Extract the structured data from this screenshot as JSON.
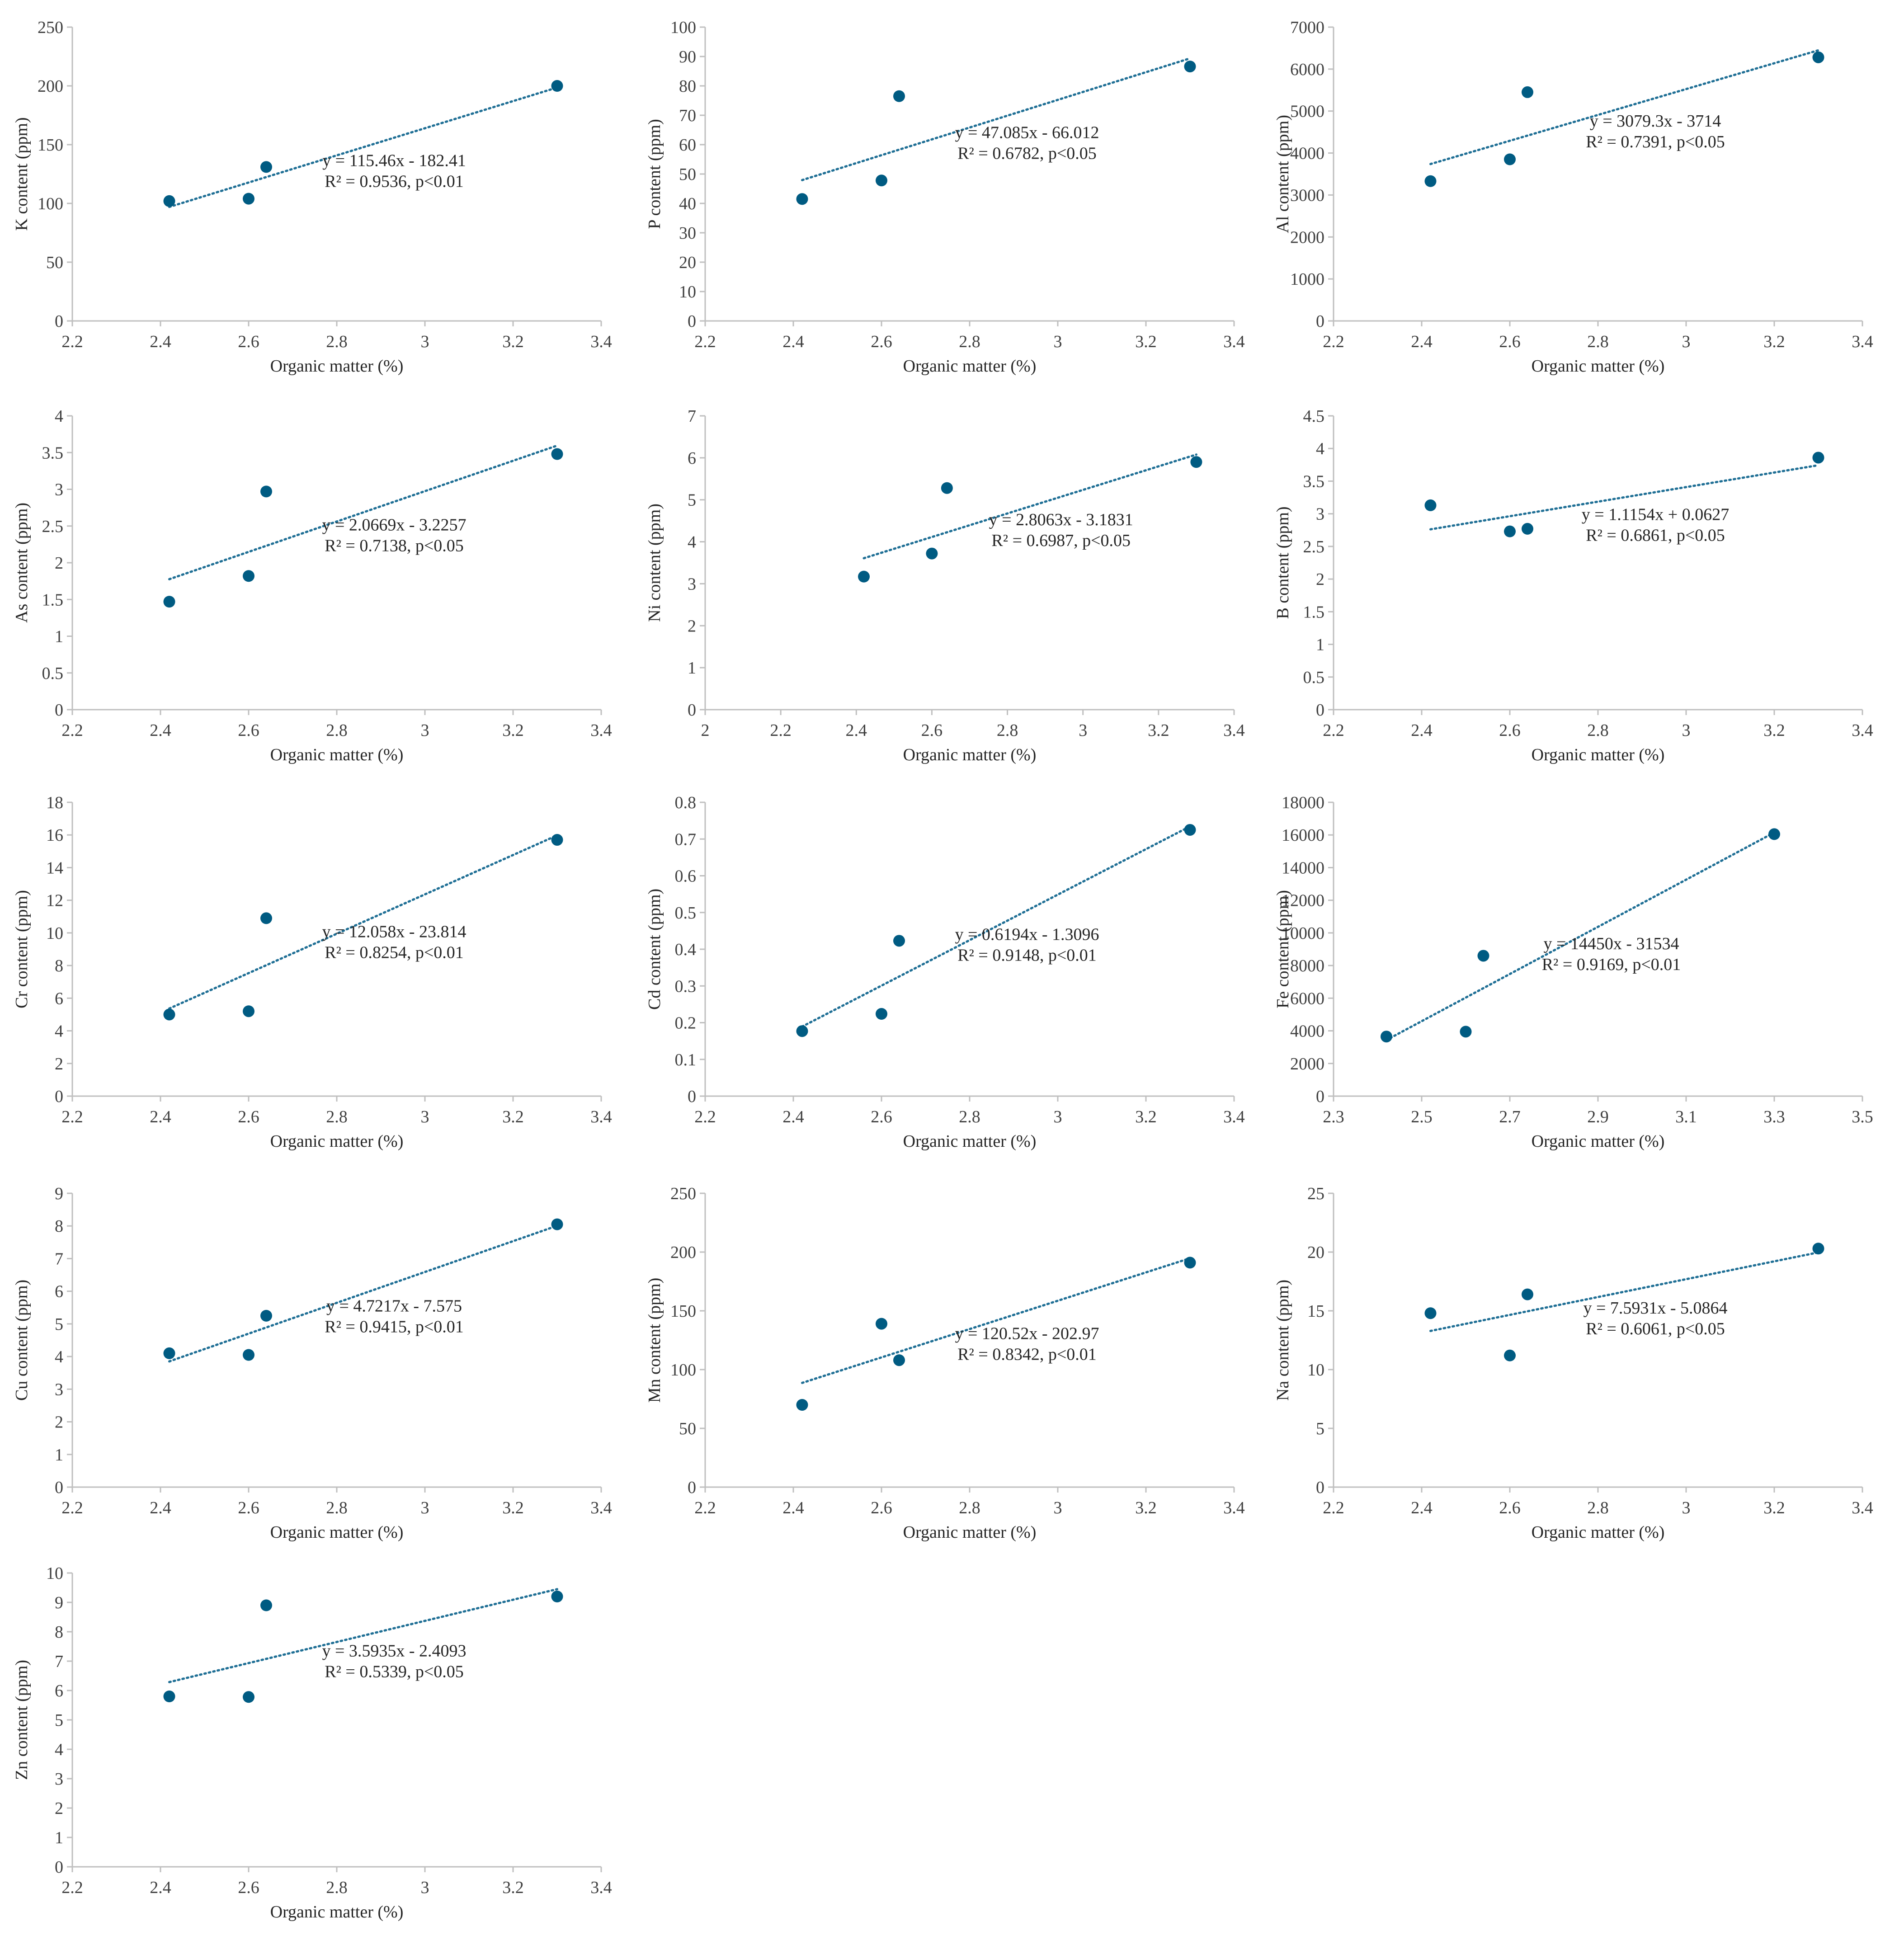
{
  "figure": {
    "x_axis_title": "Organic matter (%)",
    "point_color": "#005b82",
    "trend_color": "#1f6f95"
  },
  "chart_data": [
    {
      "type": "scatter",
      "id": "k",
      "ylabel": "K content (ppm)",
      "xlabel": "Organic matter (%)",
      "xlim": [
        2.2,
        3.4
      ],
      "xstep": 0.2,
      "ylim": [
        0,
        250
      ],
      "ystep": 50,
      "x_ticks": [
        "2.2",
        "2.4",
        "2.6",
        "2.8",
        "3",
        "3.2",
        "3.4"
      ],
      "y_ticks": [
        "0",
        "50",
        "100",
        "150",
        "200",
        "250"
      ],
      "points": [
        [
          2.42,
          102
        ],
        [
          2.6,
          104
        ],
        [
          2.64,
          131
        ],
        [
          3.3,
          200
        ]
      ],
      "trendline": {
        "slope": 115.46,
        "intercept": -182.41,
        "x_range": [
          2.42,
          3.3
        ]
      },
      "equation": "y = 115.46x - 182.41",
      "r2": "R² = 0.9536, p<0.01",
      "legend": "none"
    },
    {
      "type": "scatter",
      "id": "p",
      "ylabel": "P content (ppm)",
      "xlabel": "Organic matter (%)",
      "xlim": [
        2.2,
        3.4
      ],
      "xstep": 0.2,
      "ylim": [
        0,
        100
      ],
      "ystep": 10,
      "x_ticks": [
        "2.2",
        "2.4",
        "2.6",
        "2.8",
        "3",
        "3.2",
        "3.4"
      ],
      "y_ticks": [
        "0",
        "10",
        "20",
        "30",
        "40",
        "50",
        "60",
        "70",
        "80",
        "90",
        "100"
      ],
      "points": [
        [
          2.42,
          41.5
        ],
        [
          2.6,
          47.8
        ],
        [
          2.64,
          76.5
        ],
        [
          3.3,
          86.6
        ]
      ],
      "trendline": {
        "slope": 47.085,
        "intercept": -66.012,
        "x_range": [
          2.42,
          3.3
        ]
      },
      "equation": "y = 47.085x - 66.012",
      "r2": "R² = 0.6782, p<0.05",
      "legend": "none"
    },
    {
      "type": "scatter",
      "id": "al",
      "ylabel": "Al content (ppm)",
      "xlabel": "Organic matter (%)",
      "xlim": [
        2.2,
        3.4
      ],
      "xstep": 0.2,
      "ylim": [
        0,
        7000
      ],
      "ystep": 1000,
      "x_ticks": [
        "2.2",
        "2.4",
        "2.6",
        "2.8",
        "3",
        "3.2",
        "3.4"
      ],
      "y_ticks": [
        "0",
        "1000",
        "2000",
        "3000",
        "4000",
        "5000",
        "6000",
        "7000"
      ],
      "points": [
        [
          2.42,
          3330
        ],
        [
          2.6,
          3850
        ],
        [
          2.64,
          5450
        ],
        [
          3.3,
          6280
        ]
      ],
      "trendline": {
        "slope": 3079.3,
        "intercept": -3714,
        "x_range": [
          2.42,
          3.3
        ]
      },
      "equation": "y = 3079.3x - 3714",
      "r2": "R² = 0.7391, p<0.05",
      "legend": "none"
    },
    {
      "type": "scatter",
      "id": "as",
      "ylabel": "As content (ppm)",
      "xlabel": "Organic matter (%)",
      "xlim": [
        2.2,
        3.4
      ],
      "xstep": 0.2,
      "ylim": [
        0,
        4
      ],
      "ystep": 0.5,
      "x_ticks": [
        "2.2",
        "2.4",
        "2.6",
        "2.8",
        "3",
        "3.2",
        "3.4"
      ],
      "y_ticks": [
        "0",
        "0.5",
        "1",
        "1.5",
        "2",
        "2.5",
        "3",
        "3.5",
        "4"
      ],
      "points": [
        [
          2.42,
          1.47
        ],
        [
          2.6,
          1.82
        ],
        [
          2.64,
          2.97
        ],
        [
          3.3,
          3.48
        ]
      ],
      "trendline": {
        "slope": 2.0669,
        "intercept": -3.2257,
        "x_range": [
          2.42,
          3.3
        ]
      },
      "equation": "y = 2.0669x - 3.2257",
      "r2": "R² = 0.7138, p<0.05",
      "legend": "none"
    },
    {
      "type": "scatter",
      "id": "ni",
      "ylabel": "Ni content (ppm)",
      "xlabel": "Organic matter (%)",
      "xlim": [
        2.0,
        3.4
      ],
      "xstep": 0.2,
      "ylim": [
        0,
        7
      ],
      "ystep": 1,
      "x_ticks": [
        "2",
        "2.2",
        "2.4",
        "2.6",
        "2.8",
        "3",
        "3.2",
        "3.4"
      ],
      "y_ticks": [
        "0",
        "1",
        "2",
        "3",
        "4",
        "5",
        "6",
        "7"
      ],
      "points": [
        [
          2.42,
          3.17
        ],
        [
          2.6,
          3.72
        ],
        [
          2.64,
          5.28
        ],
        [
          3.3,
          5.9
        ]
      ],
      "trendline": {
        "slope": 2.8063,
        "intercept": -3.1831,
        "x_range": [
          2.42,
          3.3
        ]
      },
      "equation": "y = 2.8063x - 3.1831",
      "r2": "R² = 0.6987, p<0.05",
      "legend": "none"
    },
    {
      "type": "scatter",
      "id": "b",
      "ylabel": "B content (ppm)",
      "xlabel": "Organic matter (%)",
      "xlim": [
        2.2,
        3.4
      ],
      "xstep": 0.2,
      "ylim": [
        0,
        4.5
      ],
      "ystep": 0.5,
      "x_ticks": [
        "2.2",
        "2.4",
        "2.6",
        "2.8",
        "3",
        "3.2",
        "3.4"
      ],
      "y_ticks": [
        "0",
        "0.5",
        "1",
        "1.5",
        "2",
        "2.5",
        "3",
        "3.5",
        "4",
        "4.5"
      ],
      "points": [
        [
          2.42,
          3.13
        ],
        [
          2.6,
          2.73
        ],
        [
          2.64,
          2.77
        ],
        [
          3.3,
          3.86
        ]
      ],
      "trendline": {
        "slope": 1.1154,
        "intercept": 0.0627,
        "x_range": [
          2.42,
          3.3
        ]
      },
      "equation": "y = 1.1154x + 0.0627",
      "r2": "R² = 0.6861, p<0.05",
      "legend": "none"
    },
    {
      "type": "scatter",
      "id": "cr",
      "ylabel": "Cr content (ppm)",
      "xlabel": "Organic matter (%)",
      "xlim": [
        2.2,
        3.4
      ],
      "xstep": 0.2,
      "ylim": [
        0,
        18
      ],
      "ystep": 2,
      "x_ticks": [
        "2.2",
        "2.4",
        "2.6",
        "2.8",
        "3",
        "3.2",
        "3.4"
      ],
      "y_ticks": [
        "0",
        "2",
        "4",
        "6",
        "8",
        "10",
        "12",
        "14",
        "16",
        "18"
      ],
      "points": [
        [
          2.42,
          5.0
        ],
        [
          2.6,
          5.2
        ],
        [
          2.64,
          10.9
        ],
        [
          3.3,
          15.7
        ]
      ],
      "trendline": {
        "slope": 12.058,
        "intercept": -23.814,
        "x_range": [
          2.42,
          3.3
        ]
      },
      "equation": "y = 12.058x - 23.814",
      "r2": "R² = 0.8254, p<0.01",
      "legend": "none"
    },
    {
      "type": "scatter",
      "id": "cd",
      "ylabel": "Cd content (ppm)",
      "xlabel": "Organic matter (%)",
      "xlim": [
        2.2,
        3.4
      ],
      "xstep": 0.2,
      "ylim": [
        0,
        0.8
      ],
      "ystep": 0.1,
      "x_ticks": [
        "2.2",
        "2.4",
        "2.6",
        "2.8",
        "3",
        "3.2",
        "3.4"
      ],
      "y_ticks": [
        "0",
        "0.1",
        "0.2",
        "0.3",
        "0.4",
        "0.5",
        "0.6",
        "0.7",
        "0.8"
      ],
      "points": [
        [
          2.42,
          0.177
        ],
        [
          2.6,
          0.224
        ],
        [
          2.64,
          0.423
        ],
        [
          3.3,
          0.725
        ]
      ],
      "trendline": {
        "slope": 0.6194,
        "intercept": -1.3096,
        "x_range": [
          2.42,
          3.3
        ]
      },
      "equation": "y = 0.6194x - 1.3096",
      "r2": "R² = 0.9148, p<0.01",
      "legend": "none"
    },
    {
      "type": "scatter",
      "id": "fe",
      "ylabel": "Fe content (ppm)",
      "xlabel": "Organic matter (%)",
      "xlim": [
        2.3,
        3.5
      ],
      "xstep": 0.2,
      "ylim": [
        0,
        18000
      ],
      "ystep": 2000,
      "x_ticks": [
        "2.3",
        "2.5",
        "2.7",
        "2.9",
        "3.1",
        "3.3",
        "3.5"
      ],
      "y_ticks": [
        "0",
        "2000",
        "4000",
        "6000",
        "8000",
        "10000",
        "12000",
        "14000",
        "16000",
        "18000"
      ],
      "points": [
        [
          2.42,
          3650
        ],
        [
          2.6,
          3950
        ],
        [
          2.64,
          8600
        ],
        [
          3.3,
          16050
        ]
      ],
      "trendline": {
        "slope": 14450,
        "intercept": -31534,
        "x_range": [
          2.42,
          3.3
        ]
      },
      "equation": "y = 14450x - 31534",
      "r2": "R² = 0.9169,  p<0.01",
      "legend": "none"
    },
    {
      "type": "scatter",
      "id": "cu",
      "ylabel": "Cu content (ppm)",
      "xlabel": "Organic matter (%)",
      "xlim": [
        2.2,
        3.4
      ],
      "xstep": 0.2,
      "ylim": [
        0,
        9
      ],
      "ystep": 1,
      "x_ticks": [
        "2.2",
        "2.4",
        "2.6",
        "2.8",
        "3",
        "3.2",
        "3.4"
      ],
      "y_ticks": [
        "0",
        "1",
        "2",
        "3",
        "4",
        "5",
        "6",
        "7",
        "8",
        "9"
      ],
      "points": [
        [
          2.42,
          4.1
        ],
        [
          2.6,
          4.05
        ],
        [
          2.64,
          5.25
        ],
        [
          3.3,
          8.05
        ]
      ],
      "trendline": {
        "slope": 4.7217,
        "intercept": -7.575,
        "x_range": [
          2.42,
          3.3
        ]
      },
      "equation": "y = 4.7217x - 7.575",
      "r2": "R² = 0.9415, p<0.01",
      "legend": "none"
    },
    {
      "type": "scatter",
      "id": "mn",
      "ylabel": "Mn content (ppm)",
      "xlabel": "Organic matter (%)",
      "xlim": [
        2.2,
        3.4
      ],
      "xstep": 0.2,
      "ylim": [
        0,
        250
      ],
      "ystep": 50,
      "x_ticks": [
        "2.2",
        "2.4",
        "2.6",
        "2.8",
        "3",
        "3.2",
        "3.4"
      ],
      "y_ticks": [
        "0",
        "50",
        "100",
        "150",
        "200",
        "250"
      ],
      "points": [
        [
          2.42,
          70
        ],
        [
          2.6,
          139
        ],
        [
          2.64,
          108
        ],
        [
          3.3,
          191
        ]
      ],
      "trendline": {
        "slope": 120.52,
        "intercept": -202.97,
        "x_range": [
          2.42,
          3.3
        ]
      },
      "equation": "y = 120.52x - 202.97",
      "r2": "R² = 0.8342, p<0.01",
      "legend": "none"
    },
    {
      "type": "scatter",
      "id": "na",
      "ylabel": "Na content (ppm)",
      "xlabel": "Organic matter (%)",
      "xlim": [
        2.2,
        3.4
      ],
      "xstep": 0.2,
      "ylim": [
        0,
        25
      ],
      "ystep": 5,
      "x_ticks": [
        "2.2",
        "2.4",
        "2.6",
        "2.8",
        "3",
        "3.2",
        "3.4"
      ],
      "y_ticks": [
        "0",
        "5",
        "10",
        "15",
        "20",
        "25"
      ],
      "points": [
        [
          2.42,
          14.8
        ],
        [
          2.6,
          11.2
        ],
        [
          2.64,
          16.4
        ],
        [
          3.3,
          20.3
        ]
      ],
      "trendline": {
        "slope": 7.5931,
        "intercept": -5.0864,
        "x_range": [
          2.42,
          3.3
        ]
      },
      "equation": "y = 7.5931x - 5.0864",
      "r2": "R² = 0.6061, p<0.05",
      "legend": "none"
    },
    {
      "type": "scatter",
      "id": "zn",
      "ylabel": "Zn content (ppm)",
      "xlabel": "Organic matter (%)",
      "xlim": [
        2.2,
        3.4
      ],
      "xstep": 0.2,
      "ylim": [
        0,
        10
      ],
      "ystep": 1,
      "x_ticks": [
        "2.2",
        "2.4",
        "2.6",
        "2.8",
        "3",
        "3.2",
        "3.4"
      ],
      "y_ticks": [
        "0",
        "1",
        "2",
        "3",
        "4",
        "5",
        "6",
        "7",
        "8",
        "9",
        "10"
      ],
      "points": [
        [
          2.42,
          5.8
        ],
        [
          2.6,
          5.78
        ],
        [
          2.64,
          8.9
        ],
        [
          3.3,
          9.2
        ]
      ],
      "trendline": {
        "slope": 3.5935,
        "intercept": -2.4093,
        "x_range": [
          2.42,
          3.3
        ]
      },
      "equation": "y = 3.5935x - 2.4093",
      "r2": "R² = 0.5339, p<0.05",
      "legend": "none"
    }
  ]
}
